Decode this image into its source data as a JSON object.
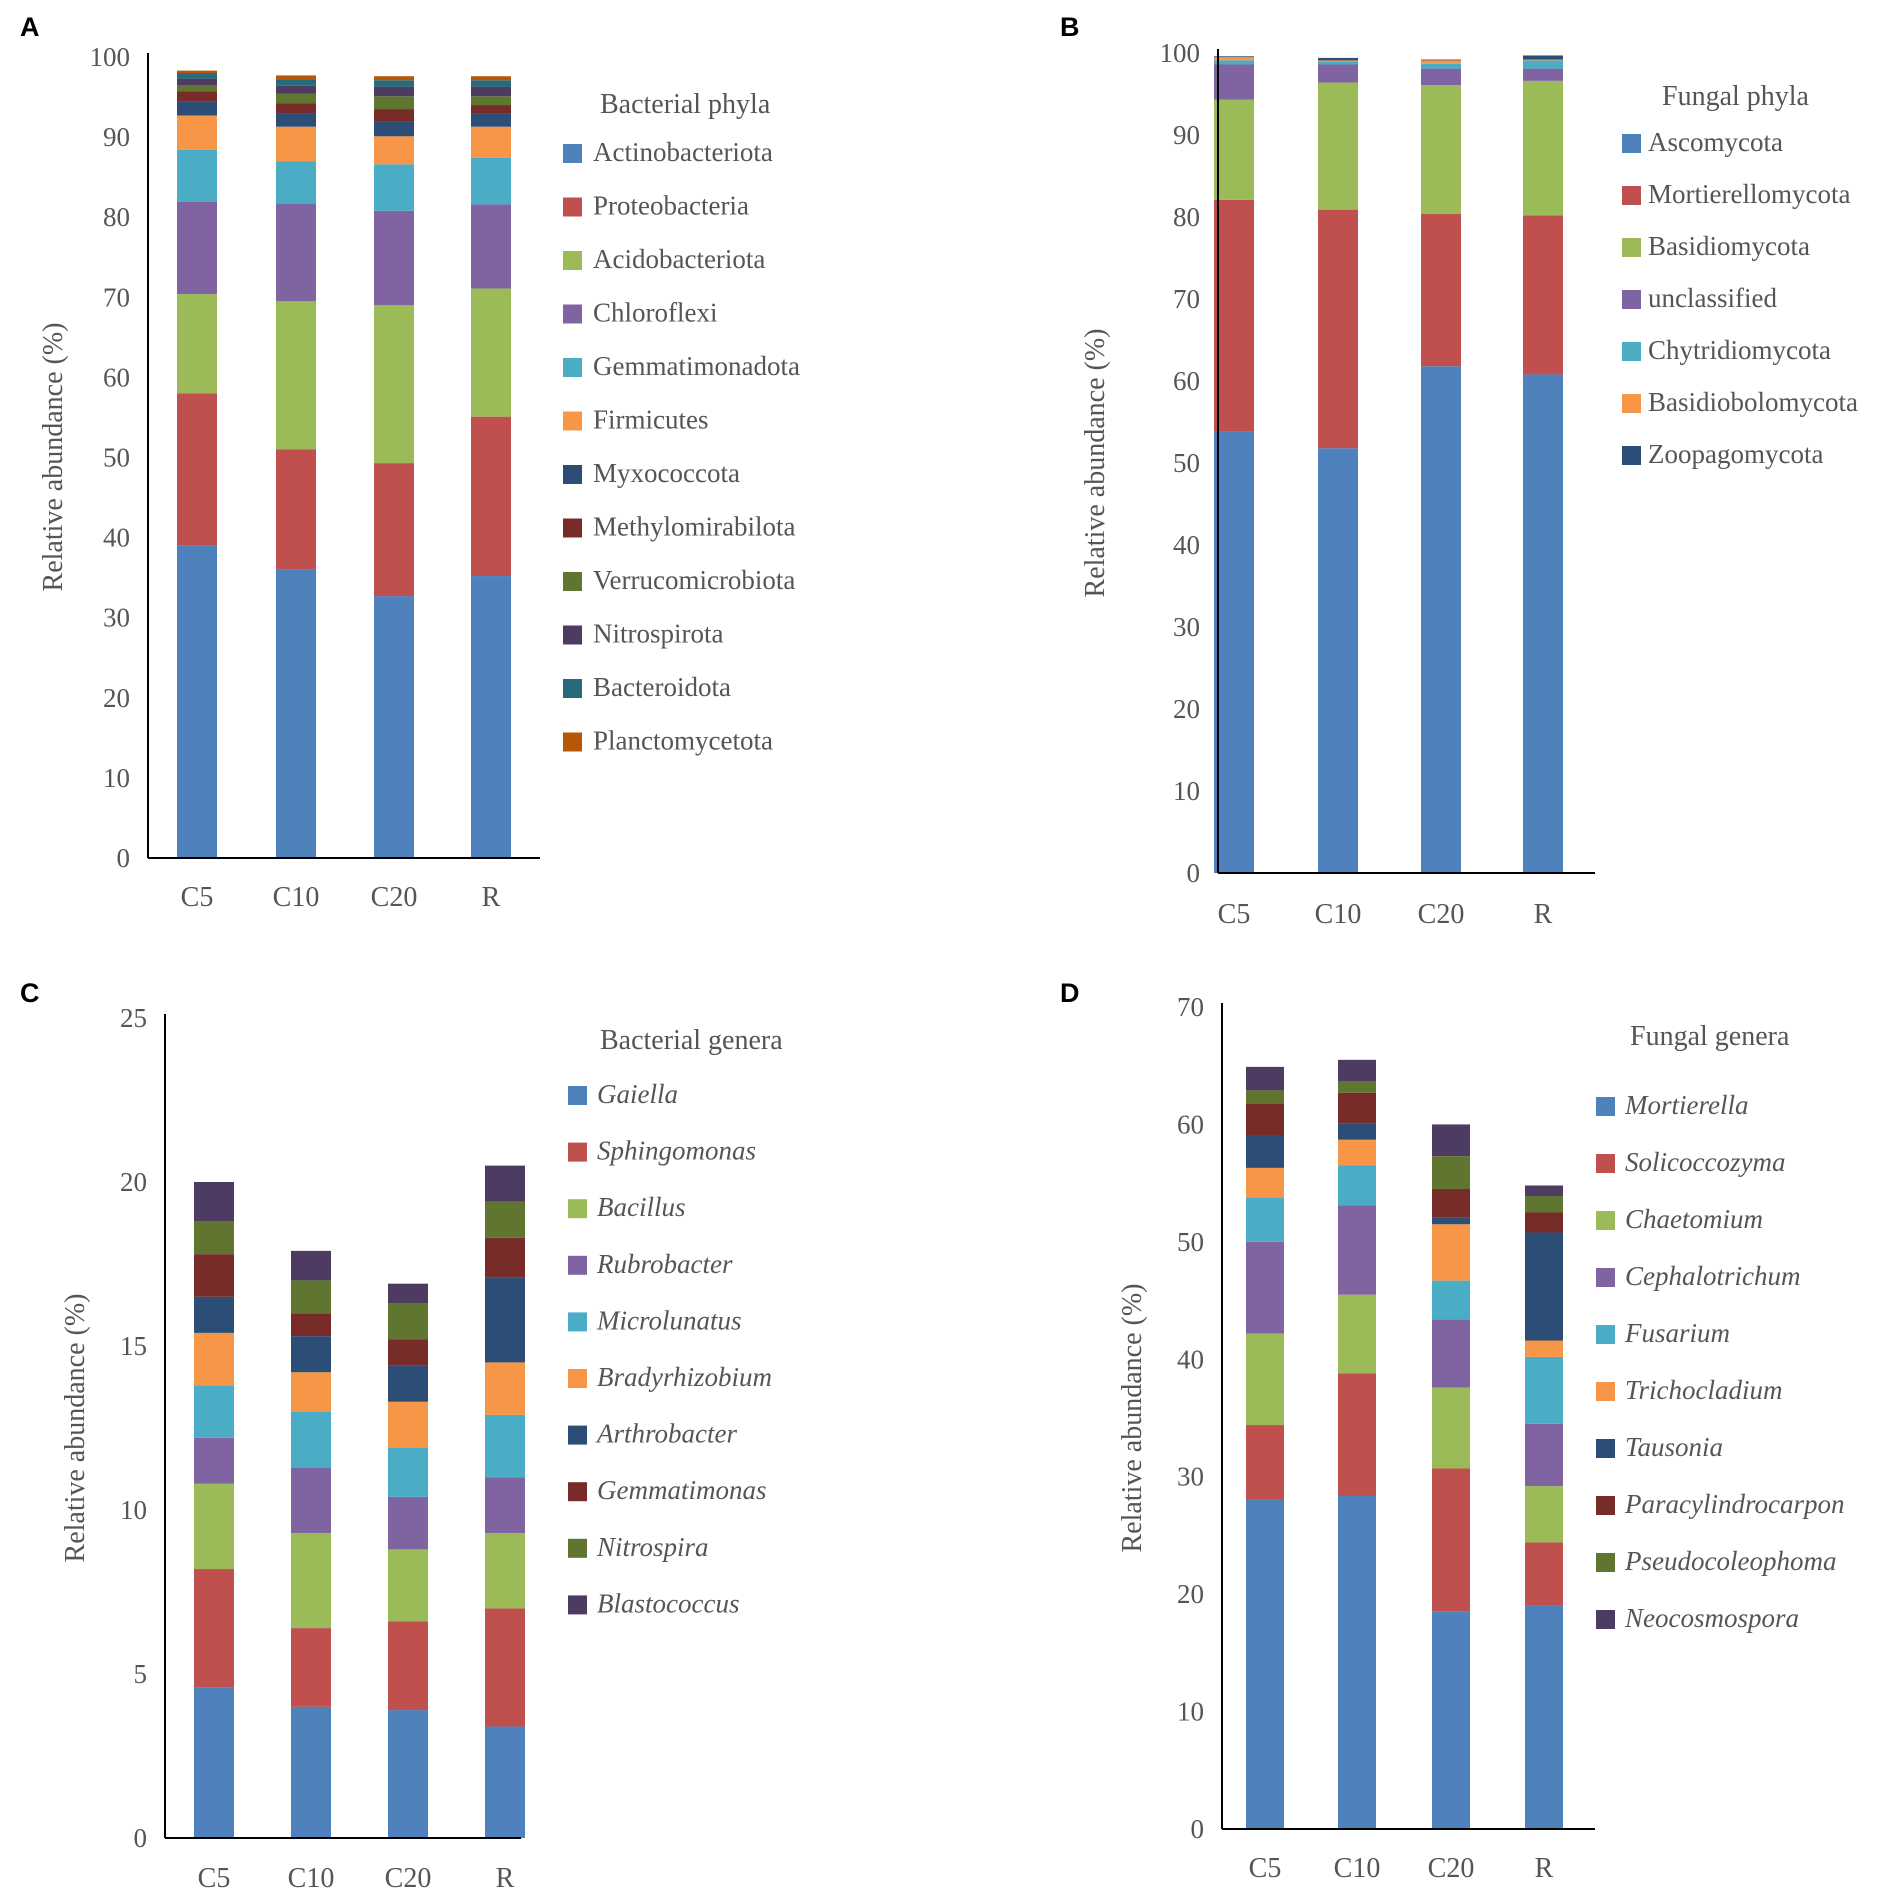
{
  "chart_data": [
    {
      "panel": "A",
      "type": "bar",
      "stacked": true,
      "ylabel": "Relative abundance (%)",
      "ylim": [
        0,
        100
      ],
      "yticks": [
        0,
        10,
        20,
        30,
        40,
        50,
        60,
        70,
        80,
        90,
        100
      ],
      "categories": [
        "C5",
        "C10",
        "C20",
        "R"
      ],
      "legend_title": "Bacterial phyla",
      "italic_legend": false,
      "series": [
        {
          "name": "Actinobacteriota",
          "color": "#4f81bd",
          "values": [
            39.0,
            36.0,
            32.7,
            35.2
          ]
        },
        {
          "name": "Proteobacteria",
          "color": "#c0504d",
          "values": [
            19.0,
            15.0,
            16.6,
            19.9
          ]
        },
        {
          "name": "Acidobacteriota",
          "color": "#9bbb59",
          "values": [
            12.4,
            18.5,
            19.7,
            16.0
          ]
        },
        {
          "name": "Chloroflexi",
          "color": "#8064a2",
          "values": [
            11.5,
            12.2,
            11.8,
            10.5
          ]
        },
        {
          "name": "Gemmatimonadota",
          "color": "#4bacc6",
          "values": [
            6.5,
            5.3,
            5.8,
            5.8
          ]
        },
        {
          "name": "Firmicutes",
          "color": "#f79646",
          "values": [
            4.3,
            4.3,
            3.5,
            3.9
          ]
        },
        {
          "name": "Myxococcota",
          "color": "#2c4d75",
          "values": [
            1.7,
            1.6,
            1.8,
            1.6
          ]
        },
        {
          "name": "Methylomirabilota",
          "color": "#772c2a",
          "values": [
            1.3,
            1.3,
            1.6,
            1.1
          ]
        },
        {
          "name": "Verrucomicrobiota",
          "color": "#5f7530",
          "values": [
            0.8,
            1.2,
            1.6,
            1.1
          ]
        },
        {
          "name": "Nitrospirota",
          "color": "#4d3b62",
          "values": [
            0.8,
            1.0,
            1.2,
            1.2
          ]
        },
        {
          "name": "Bacteroidota",
          "color": "#276a7c",
          "values": [
            0.7,
            0.8,
            0.8,
            0.8
          ]
        },
        {
          "name": "Planctomycetota",
          "color": "#b65708",
          "values": [
            0.3,
            0.5,
            0.5,
            0.5
          ]
        }
      ]
    },
    {
      "panel": "B",
      "type": "bar",
      "stacked": true,
      "ylabel": "Relative abundance (%)",
      "ylim": [
        0,
        100
      ],
      "yticks": [
        0,
        10,
        20,
        30,
        40,
        50,
        60,
        70,
        80,
        90,
        100
      ],
      "categories": [
        "C5",
        "C10",
        "C20",
        "R"
      ],
      "legend_title": "Fungal phyla",
      "italic_legend": false,
      "series": [
        {
          "name": "Ascomycota",
          "color": "#4f81bd",
          "values": [
            53.8,
            51.8,
            61.8,
            60.8
          ]
        },
        {
          "name": "Mortierellomycota",
          "color": "#c0504d",
          "values": [
            28.3,
            29.1,
            18.6,
            19.4
          ]
        },
        {
          "name": "Basidiomycota",
          "color": "#9bbb59",
          "values": [
            12.2,
            15.5,
            15.7,
            16.4
          ]
        },
        {
          "name": "unclassified",
          "color": "#8064a2",
          "values": [
            4.3,
            2.2,
            2.0,
            1.5
          ]
        },
        {
          "name": "Chytridiomycota",
          "color": "#4bacc6",
          "values": [
            0.5,
            0.4,
            0.6,
            1.0
          ]
        },
        {
          "name": "Basidiobolomycota",
          "color": "#f79646",
          "values": [
            0.4,
            0.1,
            0.4,
            0.1
          ]
        },
        {
          "name": "Zoopagomycota",
          "color": "#2c4d75",
          "values": [
            0.1,
            0.3,
            0.1,
            0.5
          ]
        }
      ]
    },
    {
      "panel": "C",
      "type": "bar",
      "stacked": true,
      "ylabel": "Relative abundance (%)",
      "ylim": [
        0,
        25
      ],
      "yticks": [
        0,
        5,
        10,
        15,
        20,
        25
      ],
      "categories": [
        "C5",
        "C10",
        "C20",
        "R"
      ],
      "legend_title": "Bacterial genera",
      "italic_legend": true,
      "series": [
        {
          "name": "Gaiella",
          "color": "#4f81bd",
          "values": [
            4.6,
            4.0,
            3.9,
            3.4
          ]
        },
        {
          "name": "Sphingomonas",
          "color": "#c0504d",
          "values": [
            3.6,
            2.4,
            2.7,
            3.6
          ]
        },
        {
          "name": "Bacillus",
          "color": "#9bbb59",
          "values": [
            2.6,
            2.9,
            2.2,
            2.3
          ]
        },
        {
          "name": "Rubrobacter",
          "color": "#8064a2",
          "values": [
            1.4,
            2.0,
            1.6,
            1.7
          ]
        },
        {
          "name": "Microlunatus",
          "color": "#4bacc6",
          "values": [
            1.6,
            1.7,
            1.5,
            1.9
          ]
        },
        {
          "name": "Bradyrhizobium",
          "color": "#f79646",
          "values": [
            1.6,
            1.2,
            1.4,
            1.6
          ]
        },
        {
          "name": "Arthrobacter",
          "color": "#2c4d75",
          "values": [
            1.1,
            1.1,
            1.1,
            2.6
          ]
        },
        {
          "name": "Gemmatimonas",
          "color": "#772c2a",
          "values": [
            1.3,
            0.7,
            0.8,
            1.2
          ]
        },
        {
          "name": "Nitrospira",
          "color": "#5f7530",
          "values": [
            1.0,
            1.0,
            1.1,
            1.1
          ]
        },
        {
          "name": "Blastococcus",
          "color": "#4d3b62",
          "values": [
            1.2,
            0.9,
            0.6,
            1.1
          ]
        }
      ]
    },
    {
      "panel": "D",
      "type": "bar",
      "stacked": true,
      "ylabel": "Relative abundance (%)",
      "ylim": [
        0,
        70
      ],
      "yticks": [
        0,
        10,
        20,
        30,
        40,
        50,
        60,
        70
      ],
      "categories": [
        "C5",
        "C10",
        "C20",
        "R"
      ],
      "legend_title": "Fungal genera",
      "italic_legend": true,
      "series": [
        {
          "name": "Mortierella",
          "color": "#4f81bd",
          "values": [
            28.1,
            28.4,
            18.5,
            19.0
          ]
        },
        {
          "name": "Solicoccozyma",
          "color": "#c0504d",
          "values": [
            6.3,
            10.4,
            12.2,
            5.4
          ]
        },
        {
          "name": "Chaetomium",
          "color": "#9bbb59",
          "values": [
            7.8,
            6.7,
            6.9,
            4.8
          ]
        },
        {
          "name": "Cephalotrichum",
          "color": "#8064a2",
          "values": [
            7.8,
            7.6,
            5.8,
            5.3
          ]
        },
        {
          "name": "Fusarium",
          "color": "#4bacc6",
          "values": [
            3.8,
            3.4,
            3.3,
            5.7
          ]
        },
        {
          "name": "Trichocladium",
          "color": "#f79646",
          "values": [
            2.5,
            2.2,
            4.8,
            1.4
          ]
        },
        {
          "name": "Tausonia",
          "color": "#2c4d75",
          "values": [
            2.8,
            1.4,
            0.6,
            9.2
          ]
        },
        {
          "name": "Paracylindrocarpon",
          "color": "#772c2a",
          "values": [
            2.7,
            2.6,
            2.4,
            1.7
          ]
        },
        {
          "name": "Pseudocoleophoma",
          "color": "#5f7530",
          "values": [
            1.1,
            1.0,
            2.8,
            1.4
          ]
        },
        {
          "name": "Neocosmospora",
          "color": "#4d3b62",
          "values": [
            2.0,
            1.8,
            2.7,
            0.9
          ]
        }
      ]
    }
  ]
}
